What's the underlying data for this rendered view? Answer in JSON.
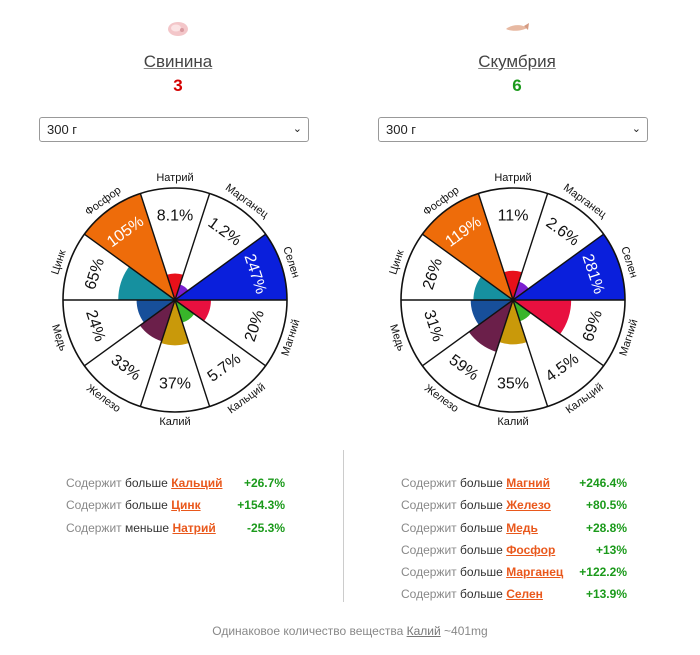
{
  "foods": [
    {
      "name": "Свинина",
      "score": "3",
      "score_color": "#d40000",
      "icon": "pork-meat-icon",
      "portion": "300 г"
    },
    {
      "name": "Скумбрия",
      "score": "6",
      "score_color": "#1b9a1b",
      "icon": "fish-icon",
      "portion": "300 г"
    }
  ],
  "chart_data": [
    {
      "type": "radar-pie",
      "food": "Свинина",
      "slices": [
        {
          "nutrient": "Натрий",
          "label": "8.1%",
          "value": 8.1,
          "color": "#e8101a"
        },
        {
          "nutrient": "Марганец",
          "label": "1.2%",
          "value": 1.2,
          "color": "#7a1fd0"
        },
        {
          "nutrient": "Селен",
          "label": "247%",
          "value": 247,
          "color": "#0a1fdc"
        },
        {
          "nutrient": "Магний",
          "label": "20%",
          "value": 20,
          "color": "#e8103f"
        },
        {
          "nutrient": "Кальций",
          "label": "5.7%",
          "value": 5.7,
          "color": "#38b52a"
        },
        {
          "nutrient": "Калий",
          "label": "37%",
          "value": 37,
          "color": "#c9990a"
        },
        {
          "nutrient": "Железо",
          "label": "33%",
          "value": 33,
          "color": "#6b1f4a"
        },
        {
          "nutrient": "Медь",
          "label": "24%",
          "value": 24,
          "color": "#174f9a"
        },
        {
          "nutrient": "Цинк",
          "label": "65%",
          "value": 65,
          "color": "#16909f"
        },
        {
          "nutrient": "Фосфор",
          "label": "105%",
          "value": 105,
          "color": "#ee6c0a"
        }
      ]
    },
    {
      "type": "radar-pie",
      "food": "Скумбрия",
      "slices": [
        {
          "nutrient": "Натрий",
          "label": "11%",
          "value": 11,
          "color": "#e8101a"
        },
        {
          "nutrient": "Марганец",
          "label": "2.6%",
          "value": 2.6,
          "color": "#7a1fd0"
        },
        {
          "nutrient": "Селен",
          "label": "281%",
          "value": 281,
          "color": "#0a1fdc"
        },
        {
          "nutrient": "Магний",
          "label": "69%",
          "value": 69,
          "color": "#e8103f"
        },
        {
          "nutrient": "Кальций",
          "label": "4.5%",
          "value": 4.5,
          "color": "#38b52a"
        },
        {
          "nutrient": "Калий",
          "label": "35%",
          "value": 35,
          "color": "#c9990a"
        },
        {
          "nutrient": "Железо",
          "label": "59%",
          "value": 59,
          "color": "#6b1f4a"
        },
        {
          "nutrient": "Медь",
          "label": "31%",
          "value": 31,
          "color": "#174f9a"
        },
        {
          "nutrient": "Цинк",
          "label": "26%",
          "value": 26,
          "color": "#16909f"
        },
        {
          "nutrient": "Фосфор",
          "label": "119%",
          "value": 119,
          "color": "#ee6c0a"
        }
      ]
    }
  ],
  "comparison": {
    "lead": "Содержит",
    "left": [
      {
        "verb": "больше",
        "nutrient": "Кальций",
        "pct": "+26.7%"
      },
      {
        "verb": "больше",
        "nutrient": "Цинк",
        "pct": "+154.3%"
      },
      {
        "verb": "меньше",
        "nutrient": "Натрий",
        "pct": "-25.3%"
      }
    ],
    "right": [
      {
        "verb": "больше",
        "nutrient": "Магний",
        "pct": "+246.4%"
      },
      {
        "verb": "больше",
        "nutrient": "Железо",
        "pct": "+80.5%"
      },
      {
        "verb": "больше",
        "nutrient": "Медь",
        "pct": "+28.8%"
      },
      {
        "verb": "больше",
        "nutrient": "Фосфор",
        "pct": "+13%"
      },
      {
        "verb": "больше",
        "nutrient": "Марганец",
        "pct": "+122.2%"
      },
      {
        "verb": "больше",
        "nutrient": "Селен",
        "pct": "+13.9%"
      }
    ]
  },
  "footer": {
    "text": "Одинаковое количество вещества",
    "nutrient": "Калий",
    "amount": "~401mg"
  }
}
